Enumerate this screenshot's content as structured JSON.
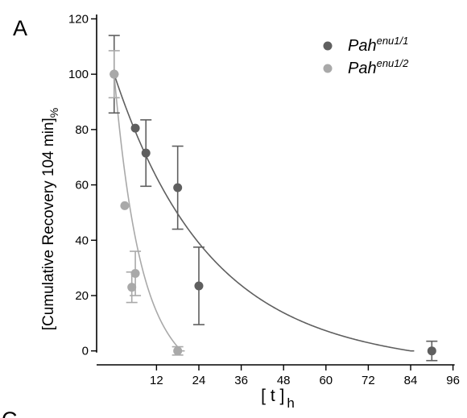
{
  "panel_letters": [
    "A",
    "C"
  ],
  "chart_data": {
    "type": "scatter",
    "title": "",
    "xlabel": "[ t ]",
    "xlabel_subscript": "h",
    "ylabel": "[Cumulative Recovery 104 min]",
    "ylabel_subscript": "%",
    "xlim": [
      -2,
      97
    ],
    "ylim": [
      -3,
      121
    ],
    "xticks": [
      12,
      24,
      36,
      48,
      60,
      72,
      84,
      96
    ],
    "yticks": [
      0,
      20,
      40,
      60,
      80,
      100,
      120
    ],
    "grid": false,
    "legend_position": "top-right",
    "series": [
      {
        "name": "Pah",
        "name_superscript": "enu1/1",
        "color": "#5f5f5f",
        "points": [
          {
            "x": 0,
            "y": 100,
            "err": 14
          },
          {
            "x": 6,
            "y": 80.5,
            "err": 0
          },
          {
            "x": 9,
            "y": 71.5,
            "err": 12
          },
          {
            "x": 18,
            "y": 59,
            "err": 15
          },
          {
            "x": 24,
            "y": 23.5,
            "err": 14
          },
          {
            "x": 90,
            "y": 0,
            "err": 3.5
          }
        ],
        "fit": {
          "model": "exponential",
          "y0": 100,
          "k": 0.038,
          "floor_at": 84
        }
      },
      {
        "name": "Pah",
        "name_superscript": "enu1/2",
        "color": "#a9a9a9",
        "points": [
          {
            "x": 0,
            "y": 100,
            "err": 8.5
          },
          {
            "x": 3,
            "y": 52.5,
            "err": 0
          },
          {
            "x": 5,
            "y": 23,
            "err": 5.5
          },
          {
            "x": 6,
            "y": 28,
            "err": 8
          },
          {
            "x": 18,
            "y": 0,
            "err": 1.5
          }
        ],
        "fit": {
          "model": "exponential",
          "y0": 100,
          "k": 0.14,
          "floor_at": 19
        }
      }
    ]
  }
}
